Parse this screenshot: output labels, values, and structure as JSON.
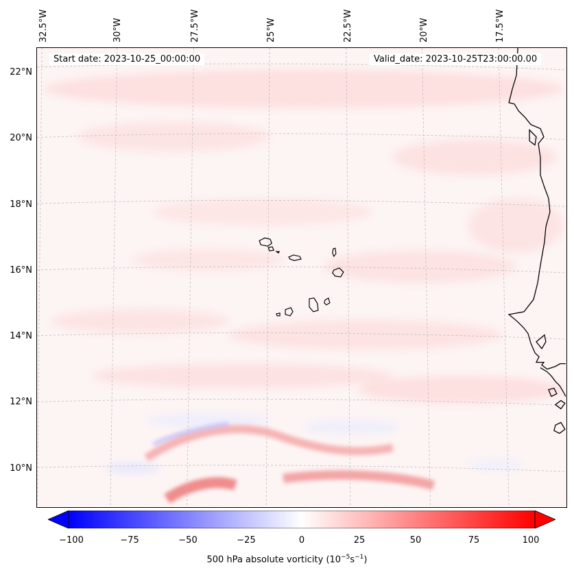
{
  "map": {
    "start_date": "Start date: 2023-10-25_00:00:00",
    "valid_date": "Valid_date: 2023-10-25T23:00:00.00",
    "lon_labels": [
      "32.5°W",
      "30°W",
      "27.5°W",
      "25°W",
      "22.5°W",
      "20°W",
      "17.5°W"
    ],
    "lat_labels": [
      "22°N",
      "20°N",
      "18°N",
      "16°N",
      "14°N",
      "12°N",
      "10°N"
    ],
    "background_color": "#fdf4f4",
    "coast_color": "#000000"
  },
  "colorbar": {
    "min": -100,
    "max": 100,
    "ticks": [
      "−100",
      "−75",
      "−50",
      "−25",
      "0",
      "25",
      "50",
      "75",
      "100"
    ],
    "label": "500 hPa absolute vorticity (10",
    "label_exp1": "−5",
    "label_mid": "s",
    "label_exp2": "−1",
    "label_end": ")",
    "low_color": "#0000ff",
    "mid_color": "#ffffff",
    "high_color": "#ff0000"
  }
}
